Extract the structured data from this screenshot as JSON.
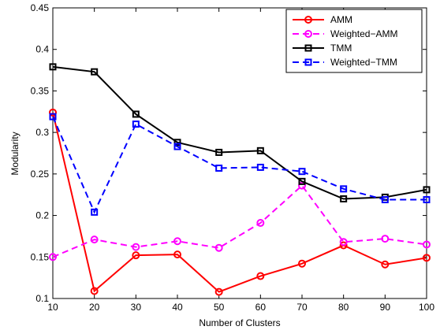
{
  "chart_data": {
    "type": "line",
    "title": "",
    "xlabel": "Number of Clusters",
    "ylabel": "Modularity",
    "x": [
      10,
      20,
      30,
      40,
      50,
      60,
      70,
      80,
      90,
      100
    ],
    "xlim": [
      10,
      100
    ],
    "ylim": [
      0.1,
      0.45
    ],
    "xticks": [
      "10",
      "20",
      "30",
      "40",
      "50",
      "60",
      "70",
      "80",
      "90",
      "100"
    ],
    "yticks": [
      "0.1",
      "0.15",
      "0.2",
      "0.25",
      "0.3",
      "0.35",
      "0.4",
      "0.45"
    ],
    "grid": false,
    "legend_position": "top-right",
    "series": [
      {
        "name": "AMM",
        "color": "#ff0000",
        "line_style": "solid",
        "marker": "circle",
        "values": [
          0.324,
          0.109,
          0.152,
          0.153,
          0.108,
          0.127,
          0.142,
          0.164,
          0.141,
          0.149
        ]
      },
      {
        "name": "Weighted−AMM",
        "color": "#ff00ff",
        "line_style": "dashed",
        "marker": "circle",
        "values": [
          0.15,
          0.171,
          0.162,
          0.169,
          0.161,
          0.191,
          0.236,
          0.168,
          0.172,
          0.165
        ]
      },
      {
        "name": "TMM",
        "color": "#000000",
        "line_style": "solid",
        "marker": "square",
        "values": [
          0.379,
          0.373,
          0.322,
          0.288,
          0.276,
          0.278,
          0.241,
          0.22,
          0.222,
          0.231
        ]
      },
      {
        "name": "Weighted−TMM",
        "color": "#0000ff",
        "line_style": "dashed",
        "marker": "square",
        "values": [
          0.319,
          0.204,
          0.31,
          0.283,
          0.257,
          0.258,
          0.253,
          0.232,
          0.219,
          0.219
        ]
      }
    ]
  }
}
